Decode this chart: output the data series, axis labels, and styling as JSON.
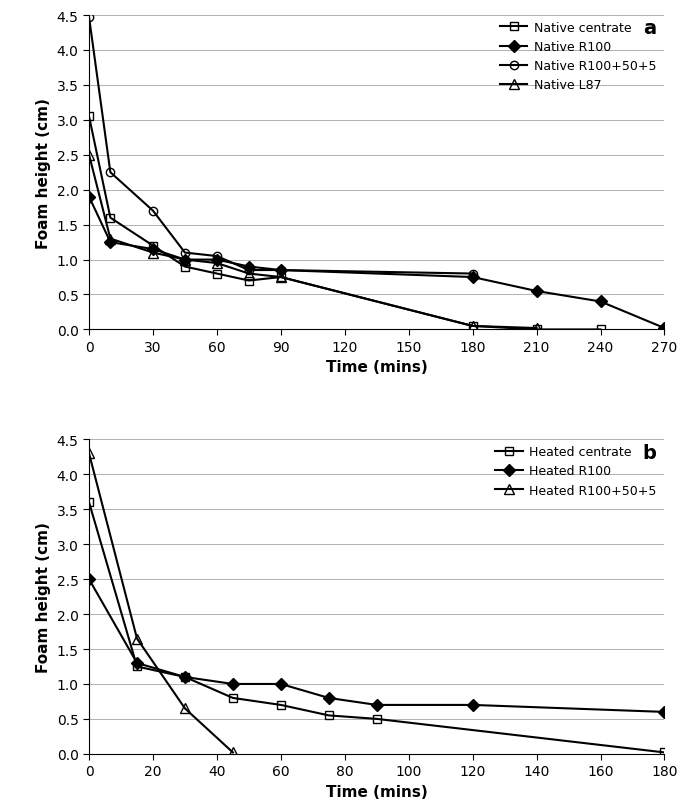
{
  "panel_a": {
    "title": "a",
    "xlabel": "Time (mins)",
    "ylabel": "Foam height (cm)",
    "ylim": [
      0,
      4.5
    ],
    "xlim": [
      0,
      270
    ],
    "xticks": [
      0,
      30,
      60,
      90,
      120,
      150,
      180,
      210,
      240,
      270
    ],
    "yticks": [
      0,
      0.5,
      1,
      1.5,
      2,
      2.5,
      3,
      3.5,
      4,
      4.5
    ],
    "series": [
      {
        "label": "Native centrate",
        "x": [
          0,
          10,
          30,
          45,
          60,
          75,
          90,
          180,
          210,
          240
        ],
        "y": [
          3.05,
          1.6,
          1.2,
          0.9,
          0.8,
          0.7,
          0.75,
          0.05,
          0.0,
          0.0
        ],
        "marker": "s",
        "fillstyle": "none",
        "linewidth": 1.5,
        "markersize": 6
      },
      {
        "label": "Native R100",
        "x": [
          0,
          10,
          30,
          45,
          60,
          75,
          90,
          180,
          210,
          240,
          270
        ],
        "y": [
          1.9,
          1.25,
          1.15,
          1.0,
          1.0,
          0.9,
          0.85,
          0.75,
          0.55,
          0.4,
          0.02
        ],
        "marker": "D",
        "fillstyle": "full",
        "linewidth": 1.5,
        "markersize": 6
      },
      {
        "label": "Native R100+50+5",
        "x": [
          0,
          10,
          30,
          45,
          60,
          75,
          90,
          180
        ],
        "y": [
          4.47,
          2.25,
          1.7,
          1.1,
          1.05,
          0.85,
          0.85,
          0.8
        ],
        "marker": "o",
        "fillstyle": "none",
        "linewidth": 1.5,
        "markersize": 6
      },
      {
        "label": "Native L87",
        "x": [
          0,
          10,
          30,
          45,
          60,
          75,
          90,
          180,
          210
        ],
        "y": [
          2.5,
          1.3,
          1.1,
          1.0,
          0.95,
          0.8,
          0.75,
          0.05,
          0.02
        ],
        "marker": "^",
        "fillstyle": "none",
        "linewidth": 1.5,
        "markersize": 7
      }
    ]
  },
  "panel_b": {
    "title": "b",
    "xlabel": "Time (mins)",
    "ylabel": "Foam height (cm)",
    "ylim": [
      0,
      4.5
    ],
    "xlim": [
      0,
      180
    ],
    "xticks": [
      0,
      20,
      40,
      60,
      80,
      100,
      120,
      140,
      160,
      180
    ],
    "yticks": [
      0,
      0.5,
      1,
      1.5,
      2,
      2.5,
      3,
      3.5,
      4,
      4.5
    ],
    "series": [
      {
        "label": "Heated centrate",
        "x": [
          0,
          15,
          30,
          45,
          60,
          75,
          90,
          180
        ],
        "y": [
          3.6,
          1.25,
          1.1,
          0.8,
          0.7,
          0.55,
          0.5,
          0.02
        ],
        "marker": "s",
        "fillstyle": "none",
        "linewidth": 1.5,
        "markersize": 6
      },
      {
        "label": "Heated R100",
        "x": [
          0,
          15,
          30,
          45,
          60,
          75,
          90,
          120,
          180
        ],
        "y": [
          2.5,
          1.3,
          1.1,
          1.0,
          1.0,
          0.8,
          0.7,
          0.7,
          0.6
        ],
        "marker": "D",
        "fillstyle": "full",
        "linewidth": 1.5,
        "markersize": 6
      },
      {
        "label": "Heated R100+50+5",
        "x": [
          0,
          15,
          30,
          45
        ],
        "y": [
          4.3,
          1.65,
          0.65,
          0.02
        ],
        "marker": "^",
        "fillstyle": "none",
        "linewidth": 1.5,
        "markersize": 7
      }
    ]
  },
  "background_color": "#ffffff",
  "grid_color": "#b0b0b0",
  "font_size": 10,
  "label_fontsize": 11,
  "title_fontsize": 14
}
